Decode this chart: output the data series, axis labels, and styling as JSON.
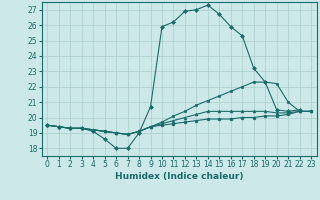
{
  "xlabel": "Humidex (Indice chaleur)",
  "background_color": "#cce8e8",
  "grid_color": "#aacccc",
  "line_color": "#1a6b6b",
  "xlim": [
    -0.5,
    23.5
  ],
  "ylim": [
    17.5,
    27.5
  ],
  "xticks": [
    0,
    1,
    2,
    3,
    4,
    5,
    6,
    7,
    8,
    9,
    10,
    11,
    12,
    13,
    14,
    15,
    16,
    17,
    18,
    19,
    20,
    21,
    22,
    23
  ],
  "yticks": [
    18,
    19,
    20,
    21,
    22,
    23,
    24,
    25,
    26,
    27
  ],
  "series": [
    [
      19.5,
      19.4,
      19.3,
      19.3,
      19.1,
      18.6,
      18.0,
      18.0,
      19.0,
      20.7,
      25.9,
      26.2,
      26.9,
      27.0,
      27.3,
      26.7,
      25.9,
      25.3,
      23.2,
      22.3,
      20.5,
      20.4,
      20.5,
      null
    ],
    [
      19.5,
      19.4,
      19.3,
      19.3,
      19.2,
      19.1,
      19.0,
      18.9,
      19.1,
      19.4,
      19.7,
      20.1,
      20.4,
      20.8,
      21.1,
      21.4,
      21.7,
      22.0,
      22.3,
      22.3,
      22.2,
      21.0,
      20.4,
      20.4
    ],
    [
      19.5,
      19.4,
      19.3,
      19.3,
      19.2,
      19.1,
      19.0,
      18.9,
      19.1,
      19.4,
      19.6,
      19.8,
      20.0,
      20.2,
      20.4,
      20.4,
      20.4,
      20.4,
      20.4,
      20.4,
      20.3,
      20.3,
      20.4,
      20.4
    ],
    [
      19.5,
      19.4,
      19.3,
      19.3,
      19.2,
      19.1,
      19.0,
      18.9,
      19.1,
      19.4,
      19.5,
      19.6,
      19.7,
      19.8,
      19.9,
      19.9,
      19.9,
      20.0,
      20.0,
      20.1,
      20.1,
      20.2,
      20.4,
      20.4
    ]
  ]
}
